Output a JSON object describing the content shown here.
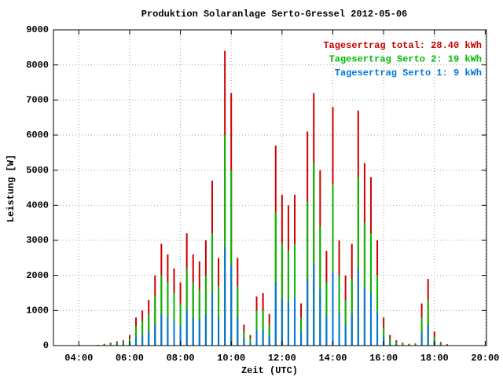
{
  "chart_data": {
    "type": "bar",
    "title": "Produktion Solaranlage Serto-Gressel 2012-05-06",
    "x_label": "Zeit (UTC)",
    "y_label": "Leistung [W]",
    "x": [
      4.75,
      5,
      5.25,
      5.5,
      5.75,
      6,
      6.25,
      6.5,
      6.75,
      7,
      7.25,
      7.5,
      7.75,
      8,
      8.25,
      8.5,
      8.75,
      9,
      9.25,
      9.5,
      9.75,
      10,
      10.25,
      10.5,
      10.75,
      11,
      11.25,
      11.5,
      11.75,
      12,
      12.25,
      12.5,
      12.75,
      13,
      13.25,
      13.5,
      13.75,
      14,
      14.25,
      14.5,
      14.75,
      15,
      15.25,
      15.5,
      15.75,
      16,
      16.25,
      16.5,
      16.75,
      17,
      17.25,
      17.5,
      17.75,
      18,
      18.25,
      18.5,
      18.75,
      19
    ],
    "series": [
      {
        "name": "Tagesertrag total: 28.40 kWh",
        "color": "#cc0000",
        "values": [
          20,
          50,
          80,
          120,
          150,
          300,
          800,
          1000,
          1300,
          2000,
          2900,
          2600,
          2200,
          1800,
          3200,
          2600,
          2400,
          3000,
          4700,
          2500,
          8400,
          7200,
          2500,
          600,
          300,
          1400,
          1500,
          900,
          5700,
          4300,
          4000,
          4300,
          1200,
          6100,
          7200,
          5000,
          2700,
          6800,
          3000,
          2000,
          2900,
          6700,
          5200,
          4800,
          3000,
          800,
          300,
          150,
          80,
          50,
          60,
          1200,
          1900,
          400,
          100,
          40,
          10,
          0
        ]
      },
      {
        "name": "Tagesertrag Serto 2: 19 kWh",
        "color": "#00bb00",
        "values": [
          10,
          30,
          50,
          80,
          100,
          200,
          550,
          700,
          900,
          1400,
          2000,
          1800,
          1500,
          1200,
          2200,
          1800,
          1600,
          2000,
          3200,
          1700,
          6000,
          5000,
          1700,
          400,
          200,
          1000,
          1000,
          600,
          3800,
          2900,
          2700,
          2900,
          800,
          4100,
          5200,
          3400,
          1800,
          4600,
          2000,
          1300,
          1900,
          4800,
          3500,
          3200,
          2000,
          500,
          200,
          100,
          50,
          30,
          40,
          800,
          1300,
          250,
          60,
          20,
          5,
          0
        ]
      },
      {
        "name": "Tagesertrag Serto 1: 9 kWh",
        "color": "#0077dd",
        "values": [
          5,
          15,
          20,
          35,
          45,
          90,
          250,
          300,
          400,
          600,
          900,
          800,
          700,
          550,
          1000,
          800,
          750,
          900,
          1500,
          800,
          2800,
          2300,
          800,
          200,
          90,
          450,
          450,
          280,
          1800,
          1350,
          1250,
          1350,
          380,
          1900,
          2300,
          1600,
          850,
          2100,
          950,
          600,
          900,
          2200,
          1650,
          1500,
          950,
          250,
          90,
          45,
          25,
          15,
          20,
          380,
          600,
          120,
          30,
          12,
          3,
          0
        ]
      }
    ],
    "xlim": [
      3,
      20.05
    ],
    "xticks": [
      {
        "value": 4,
        "label": "04:00"
      },
      {
        "value": 6,
        "label": "06:00"
      },
      {
        "value": 8,
        "label": "08:00"
      },
      {
        "value": 10,
        "label": "10:00"
      },
      {
        "value": 12,
        "label": "12:00"
      },
      {
        "value": 14,
        "label": "14:00"
      },
      {
        "value": 16,
        "label": "16:00"
      },
      {
        "value": 18,
        "label": "18:00"
      },
      {
        "value": 20,
        "label": "20:00"
      }
    ],
    "ylim": [
      0,
      9000
    ],
    "yticks": [
      0,
      1000,
      2000,
      3000,
      4000,
      5000,
      6000,
      7000,
      8000,
      9000
    ],
    "grid": true,
    "legend": "upper right"
  }
}
